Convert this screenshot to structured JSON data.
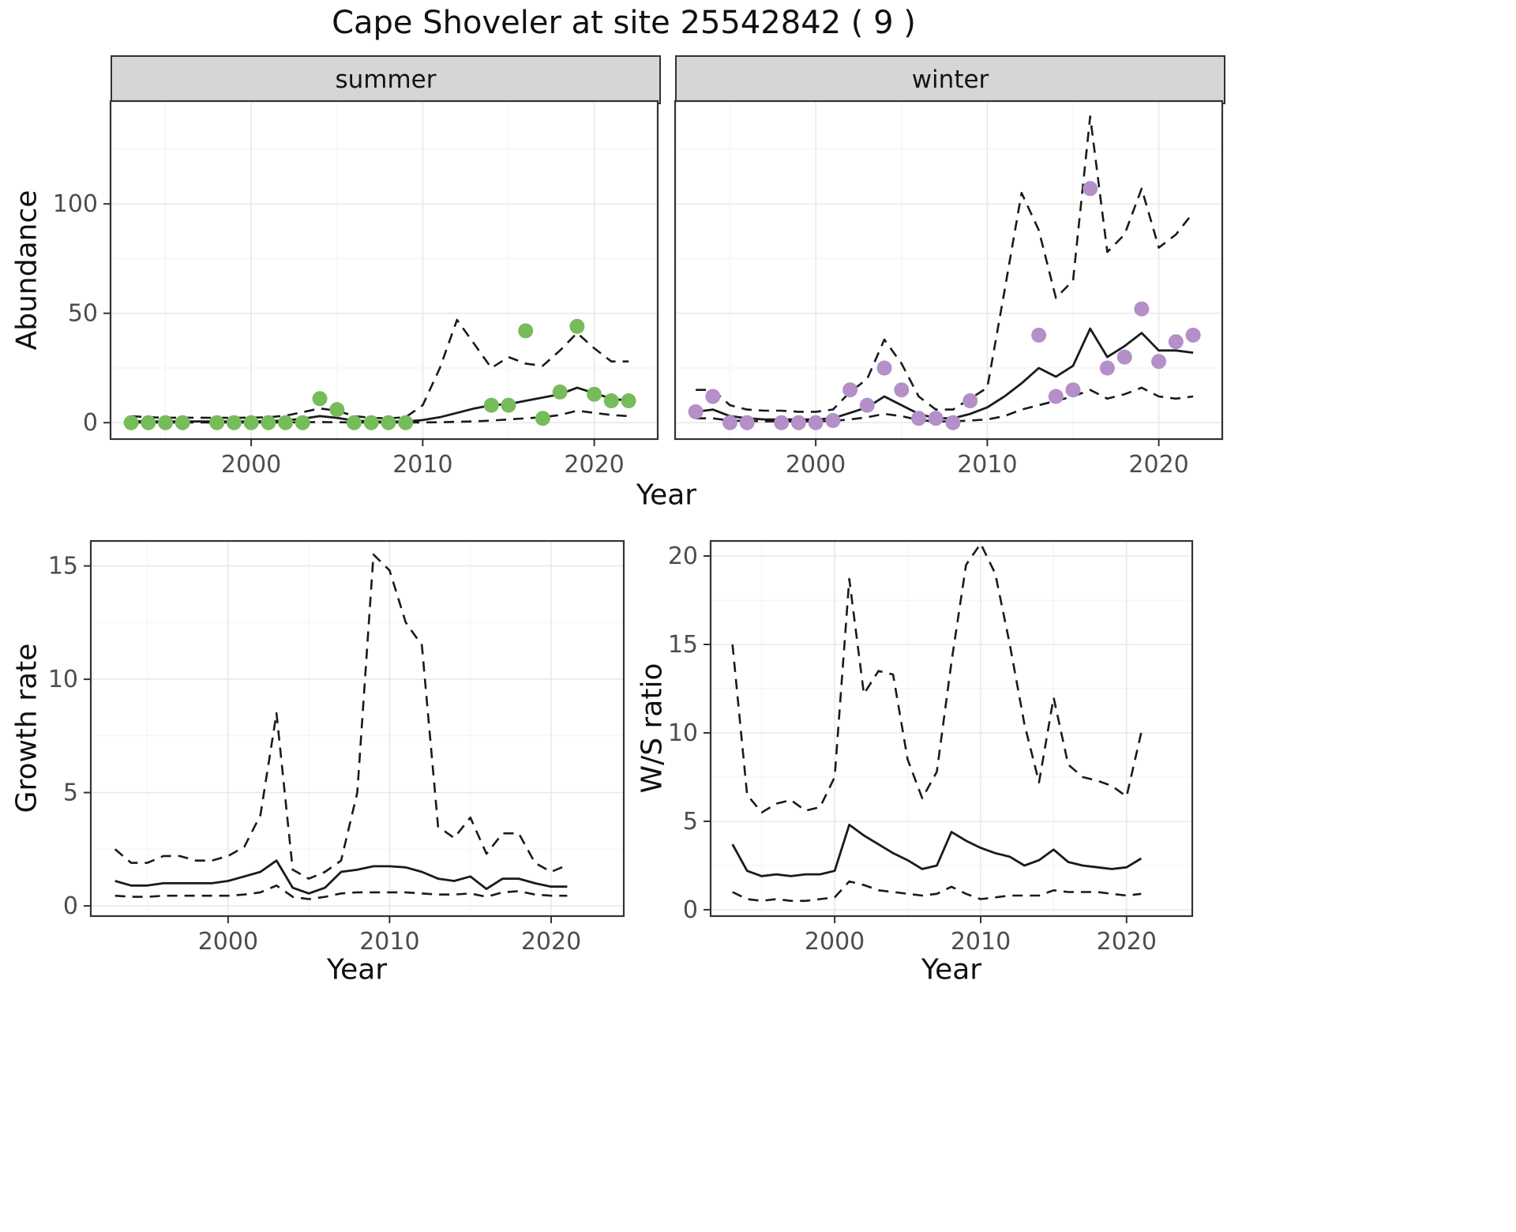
{
  "title": "Cape Shoveler at site 25542842 ( 9 )",
  "axis_labels": {
    "abundance": "Abundance",
    "year": "Year",
    "growth_rate": "Growth rate",
    "ws_ratio": "W/S ratio"
  },
  "colors": {
    "summer_points": "#76bc5b",
    "winter_points": "#b48fc8",
    "line": "#1a1a1a",
    "strip_bg": "#d6d6d6",
    "panel_border": "#333333",
    "grid_major": "#e9e9e9",
    "grid_minor": "#f4f4f4",
    "tick_text": "#4d4d4d"
  },
  "chart_data": [
    {
      "id": "abundance_summer",
      "type": "line",
      "facet_label": "summer",
      "xlabel": "Year",
      "ylabel": "Abundance",
      "xlim": [
        1991.8,
        2023.7
      ],
      "ylim": [
        -7.5,
        147
      ],
      "xticks": [
        2000,
        2010,
        2020
      ],
      "yticks": [
        0,
        50,
        100
      ],
      "show_yticklabels": true,
      "grid": true,
      "legend": "none",
      "years": [
        1993,
        1994,
        1995,
        1996,
        1997,
        1998,
        1999,
        2000,
        2001,
        2002,
        2003,
        2004,
        2005,
        2006,
        2007,
        2008,
        2009,
        2010,
        2011,
        2012,
        2013,
        2014,
        2015,
        2016,
        2017,
        2018,
        2019,
        2020,
        2021,
        2022
      ],
      "fit": [
        0.7,
        0.6,
        0.6,
        0.6,
        0.6,
        0.6,
        0.6,
        0.6,
        0.7,
        1.0,
        1.8,
        3.0,
        2.2,
        1.0,
        0.6,
        0.5,
        0.5,
        1.2,
        2.5,
        4.5,
        6.5,
        8.0,
        8.5,
        10.0,
        11.5,
        13.0,
        16.0,
        13.5,
        11.0,
        10.0
      ],
      "upper": [
        3.0,
        2.5,
        2.3,
        2.3,
        2.3,
        2.2,
        2.2,
        2.3,
        2.5,
        3.2,
        4.8,
        6.5,
        5.5,
        3.0,
        2.2,
        2.0,
        2.5,
        8.0,
        25.0,
        47.0,
        36.0,
        25.0,
        30.0,
        27.0,
        26.0,
        33.0,
        41.0,
        34.0,
        28.0,
        28.0
      ],
      "lower": [
        0.1,
        0.1,
        0.1,
        0.1,
        0.1,
        0.1,
        0.1,
        0.1,
        0.1,
        0.1,
        0.2,
        0.3,
        0.2,
        0.1,
        0.1,
        0.1,
        0.1,
        0.1,
        0.2,
        0.4,
        0.6,
        1.0,
        1.5,
        2.0,
        2.5,
        3.5,
        5.5,
        4.5,
        3.5,
        3.0
      ],
      "points": {
        "color": "#76bc5b",
        "x": [
          1993,
          1994,
          1995,
          1996,
          1998,
          1999,
          2000,
          2001,
          2002,
          2003,
          2004,
          2005,
          2006,
          2007,
          2008,
          2009,
          2014,
          2015,
          2016,
          2017,
          2018,
          2019,
          2020,
          2021,
          2022
        ],
        "y": [
          0,
          0,
          0,
          0,
          0,
          0,
          0,
          0,
          0,
          0,
          11,
          6,
          0,
          0,
          0,
          0,
          8,
          8,
          42,
          2,
          14,
          44,
          13,
          10,
          10
        ]
      }
    },
    {
      "id": "abundance_winter",
      "type": "line",
      "facet_label": "winter",
      "xlabel": "Year",
      "ylabel": "Abundance",
      "xlim": [
        1991.8,
        2023.7
      ],
      "ylim": [
        -7.5,
        147
      ],
      "xticks": [
        2000,
        2010,
        2020
      ],
      "yticks": [
        0,
        50,
        100
      ],
      "show_yticklabels": false,
      "grid": true,
      "legend": "none",
      "years": [
        1993,
        1994,
        1995,
        1996,
        1997,
        1998,
        1999,
        2000,
        2001,
        2002,
        2003,
        2004,
        2005,
        2006,
        2007,
        2008,
        2009,
        2010,
        2011,
        2012,
        2013,
        2014,
        2015,
        2016,
        2017,
        2018,
        2019,
        2020,
        2021,
        2022
      ],
      "fit": [
        5.0,
        6.0,
        3.0,
        2.0,
        1.5,
        1.5,
        1.5,
        1.5,
        2.0,
        4.5,
        7.0,
        12.0,
        8.0,
        4.0,
        2.0,
        2.0,
        4.0,
        7.0,
        12.0,
        18.0,
        25.0,
        21.0,
        26.0,
        43.0,
        30.0,
        35.0,
        41.0,
        33.0,
        33.0,
        32.0
      ],
      "upper": [
        15,
        15,
        8,
        6,
        5.5,
        5.5,
        5,
        5,
        6,
        14,
        20,
        38,
        27,
        12,
        6,
        6,
        11,
        16,
        60,
        105,
        88,
        57,
        65,
        140,
        78,
        86,
        107,
        80,
        86,
        96
      ],
      "lower": [
        2,
        2,
        1,
        0.8,
        0.6,
        0.6,
        0.6,
        0.6,
        0.8,
        1.5,
        2.5,
        4,
        3,
        1.2,
        0.6,
        0.6,
        1,
        1.5,
        3,
        6,
        8,
        10,
        12,
        15,
        11,
        13,
        16,
        12,
        11,
        12
      ],
      "points": {
        "color": "#b48fc8",
        "x": [
          1993,
          1994,
          1995,
          1996,
          1998,
          1999,
          2000,
          2001,
          2002,
          2003,
          2004,
          2005,
          2006,
          2007,
          2008,
          2009,
          2013,
          2014,
          2015,
          2016,
          2017,
          2018,
          2019,
          2020,
          2021,
          2022
        ],
        "y": [
          5,
          12,
          0,
          0,
          0,
          0,
          0,
          1,
          15,
          8,
          25,
          15,
          2,
          2,
          0,
          10,
          40,
          12,
          15,
          107,
          25,
          30,
          52,
          28,
          37,
          40
        ]
      }
    },
    {
      "id": "growth_rate",
      "type": "line",
      "facet_label": "",
      "xlabel": "Year",
      "ylabel": "Growth rate",
      "xlim": [
        1991.5,
        2024.5
      ],
      "ylim": [
        -0.45,
        16.1
      ],
      "xticks": [
        2000,
        2010,
        2020
      ],
      "yticks": [
        0,
        5,
        10,
        15
      ],
      "show_yticklabels": true,
      "grid": true,
      "legend": "none",
      "years": [
        1993,
        1994,
        1995,
        1996,
        1997,
        1998,
        1999,
        2000,
        2001,
        2002,
        2003,
        2004,
        2005,
        2006,
        2007,
        2008,
        2009,
        2010,
        2011,
        2012,
        2013,
        2014,
        2015,
        2016,
        2017,
        2018,
        2019,
        2020,
        2021
      ],
      "fit": [
        1.1,
        0.9,
        0.9,
        1.0,
        1.0,
        1.0,
        1.0,
        1.1,
        1.3,
        1.5,
        2.0,
        0.8,
        0.55,
        0.8,
        1.5,
        1.6,
        1.75,
        1.75,
        1.7,
        1.5,
        1.2,
        1.1,
        1.3,
        0.75,
        1.2,
        1.2,
        1.0,
        0.85,
        0.85
      ],
      "upper": [
        2.5,
        1.9,
        1.9,
        2.2,
        2.2,
        2.0,
        2.0,
        2.2,
        2.6,
        4.0,
        8.5,
        1.6,
        1.2,
        1.5,
        2.0,
        5.0,
        15.5,
        14.8,
        12.5,
        11.5,
        3.5,
        3.0,
        3.9,
        2.3,
        3.2,
        3.2,
        1.9,
        1.5,
        1.8
      ],
      "lower": [
        0.45,
        0.4,
        0.4,
        0.45,
        0.45,
        0.45,
        0.45,
        0.45,
        0.5,
        0.6,
        0.9,
        0.4,
        0.3,
        0.4,
        0.55,
        0.6,
        0.6,
        0.6,
        0.6,
        0.55,
        0.5,
        0.5,
        0.55,
        0.4,
        0.6,
        0.65,
        0.5,
        0.45,
        0.45
      ]
    },
    {
      "id": "ws_ratio",
      "type": "line",
      "facet_label": "",
      "xlabel": "Year",
      "ylabel": "W/S ratio",
      "xlim": [
        1991.5,
        2024.5
      ],
      "ylim": [
        -0.36,
        20.85
      ],
      "xticks": [
        2000,
        2010,
        2020
      ],
      "yticks": [
        0,
        5,
        10,
        15,
        20
      ],
      "show_yticklabels": true,
      "grid": true,
      "legend": "none",
      "years": [
        1993,
        1994,
        1995,
        1996,
        1997,
        1998,
        1999,
        2000,
        2001,
        2002,
        2003,
        2004,
        2005,
        2006,
        2007,
        2008,
        2009,
        2010,
        2011,
        2012,
        2013,
        2014,
        2015,
        2016,
        2017,
        2018,
        2019,
        2020,
        2021
      ],
      "fit": [
        3.7,
        2.2,
        1.9,
        2.0,
        1.9,
        2.0,
        2.0,
        2.2,
        4.8,
        4.2,
        3.7,
        3.2,
        2.8,
        2.3,
        2.5,
        4.4,
        3.9,
        3.5,
        3.2,
        3.0,
        2.5,
        2.8,
        3.4,
        2.7,
        2.5,
        2.4,
        2.3,
        2.4,
        2.9
      ],
      "upper": [
        15.0,
        6.5,
        5.5,
        6.0,
        6.2,
        5.6,
        5.8,
        7.5,
        18.7,
        12.2,
        13.5,
        13.3,
        8.5,
        6.3,
        7.8,
        14.0,
        19.5,
        20.7,
        19.0,
        15.0,
        10.5,
        7.2,
        12.0,
        8.2,
        7.5,
        7.3,
        7.0,
        6.4,
        10.0
      ],
      "lower": [
        1.0,
        0.6,
        0.5,
        0.6,
        0.5,
        0.5,
        0.6,
        0.7,
        1.6,
        1.4,
        1.1,
        1.0,
        0.9,
        0.8,
        0.9,
        1.3,
        0.9,
        0.6,
        0.7,
        0.8,
        0.8,
        0.8,
        1.1,
        1.0,
        1.0,
        1.0,
        0.9,
        0.8,
        0.9
      ]
    }
  ]
}
